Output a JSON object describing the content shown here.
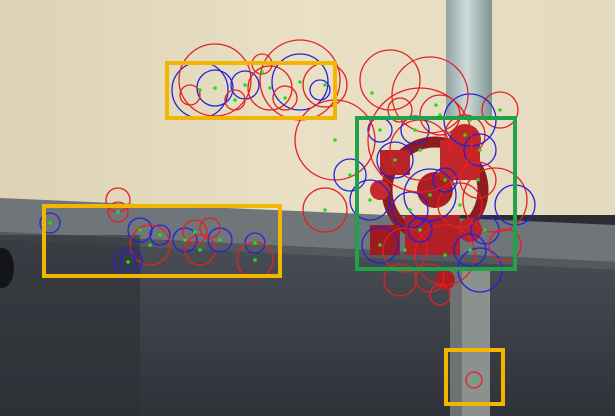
{
  "scene": {
    "wall_upper_color": "#e6dcc0",
    "wall_lower_color": "#3b3f46",
    "ledge_color": "#6a6e72",
    "pipe_color": "#b9c9c6",
    "valve_color": "#c2252a"
  },
  "overlay": {
    "detection_box_colors": [
      "#f2b600",
      "#21a14a"
    ],
    "feature_circle_colors": [
      "#e52020",
      "#2222dd"
    ],
    "keypoint_color": "#22dd22"
  }
}
